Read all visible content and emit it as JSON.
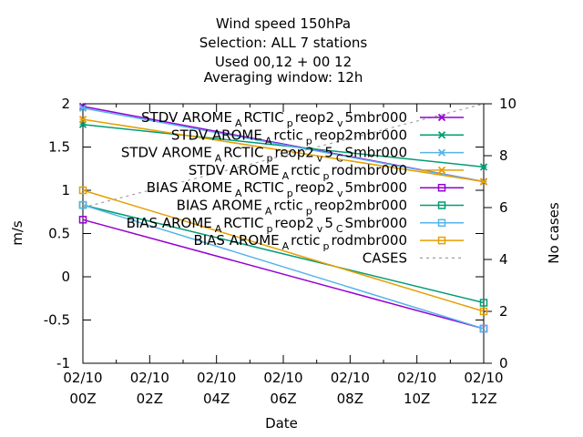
{
  "chart_data": {
    "type": "line",
    "title_lines": [
      "Wind speed 150hPa",
      "Selection: ALL      7 stations",
      "Used  00,12  + 00 12",
      "Averaging window: 12h"
    ],
    "xlabel": "Date",
    "ylabel": "m/s",
    "y2label": "No cases",
    "x_ticks": [
      {
        "line1": "02/10",
        "line2": "00Z"
      },
      {
        "line1": "02/10",
        "line2": "02Z"
      },
      {
        "line1": "02/10",
        "line2": "04Z"
      },
      {
        "line1": "02/10",
        "line2": "06Z"
      },
      {
        "line1": "02/10",
        "line2": "08Z"
      },
      {
        "line1": "02/10",
        "line2": "10Z"
      },
      {
        "line1": "02/10",
        "line2": "12Z"
      }
    ],
    "xlim": [
      0,
      12
    ],
    "ylim": [
      -1,
      2
    ],
    "y_ticks": [
      "-1",
      "-0.5",
      "0",
      "0.5",
      "1",
      "1.5",
      "2"
    ],
    "y2lim": [
      0,
      10
    ],
    "y2_ticks": [
      "0",
      "2",
      "4",
      "6",
      "8",
      "10"
    ],
    "grid": false,
    "legend_position": "top-right",
    "series": [
      {
        "legend": {
          "main": "STDV AROME",
          "s1": "A",
          "m1": "RCTIC",
          "s2": "p",
          "m2": "reop2",
          "s3": "v",
          "m3": "5mbr000"
        },
        "color": "#9400d3",
        "marker": "x",
        "axis": "y",
        "x": [
          0,
          12
        ],
        "y": [
          1.97,
          1.1
        ]
      },
      {
        "legend": {
          "main": "STDV AROME",
          "s1": "A",
          "m1": "rctic",
          "s2": "p",
          "m2": "reop2mbr000"
        },
        "color": "#009e73",
        "marker": "x",
        "axis": "y",
        "x": [
          0,
          12
        ],
        "y": [
          1.76,
          1.27
        ]
      },
      {
        "legend": {
          "main": "STDV AROME",
          "s1": "A",
          "m1": "RCTIC",
          "s2": "p",
          "m2": "reop2",
          "s3": "v",
          "m3": "5",
          "s4": "C",
          "m4": "Smbr000"
        },
        "color": "#56b4e9",
        "marker": "x",
        "axis": "y",
        "x": [
          0,
          12
        ],
        "y": [
          1.95,
          1.1
        ]
      },
      {
        "legend": {
          "main": "STDV AROME",
          "s1": "A",
          "m1": "rctic",
          "s2": "p",
          "m2": "rodmbr000"
        },
        "color": "#e69f00",
        "marker": "x",
        "axis": "y",
        "x": [
          0,
          12
        ],
        "y": [
          1.82,
          1.1
        ]
      },
      {
        "legend": {
          "main": "BIAS AROME",
          "s1": "A",
          "m1": "RCTIC",
          "s2": "p",
          "m2": "reop2",
          "s3": "v",
          "m3": "5mbr000"
        },
        "color": "#9400d3",
        "marker": "square",
        "axis": "y",
        "x": [
          0,
          12
        ],
        "y": [
          0.66,
          -0.6
        ]
      },
      {
        "legend": {
          "main": "BIAS AROME",
          "s1": "A",
          "m1": "rctic",
          "s2": "p",
          "m2": "reop2mbr000"
        },
        "color": "#009e73",
        "marker": "square",
        "axis": "y",
        "x": [
          0,
          12
        ],
        "y": [
          0.83,
          -0.3
        ]
      },
      {
        "legend": {
          "main": "BIAS AROME",
          "s1": "A",
          "m1": "RCTIC",
          "s2": "p",
          "m2": "reop2",
          "s3": "v",
          "m3": "5",
          "s4": "C",
          "m4": "Smbr000"
        },
        "color": "#56b4e9",
        "marker": "square",
        "axis": "y",
        "x": [
          0,
          12
        ],
        "y": [
          0.83,
          -0.6
        ]
      },
      {
        "legend": {
          "main": "BIAS AROME",
          "s1": "A",
          "m1": "rctic",
          "s2": "p",
          "m2": "rodmbr000"
        },
        "color": "#e69f00",
        "marker": "square",
        "axis": "y",
        "x": [
          0,
          12
        ],
        "y": [
          1.0,
          -0.4
        ]
      },
      {
        "legend": {
          "main": "CASES"
        },
        "color": "#a0a0a0",
        "marker": "none",
        "dashed": true,
        "axis": "y2",
        "x": [
          0,
          12
        ],
        "y": [
          6,
          10
        ]
      }
    ]
  }
}
